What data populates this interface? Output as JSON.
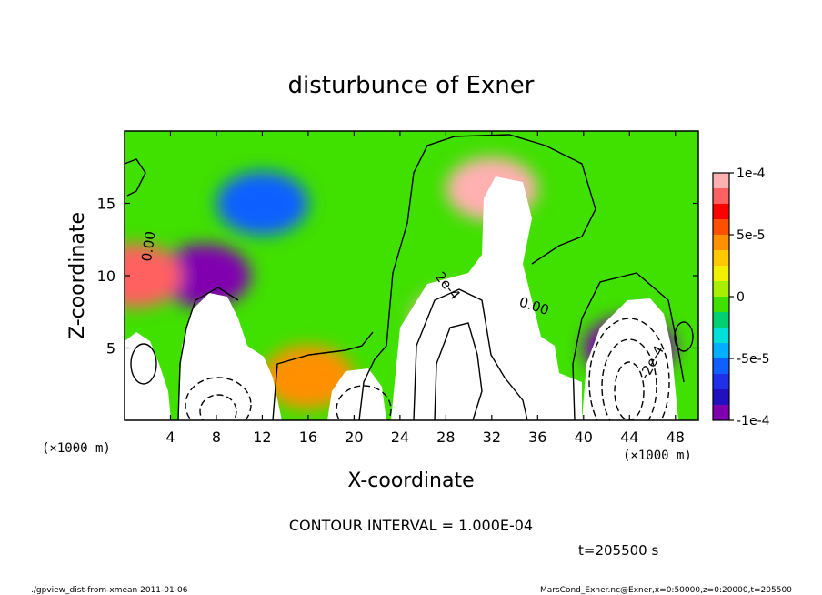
{
  "chart_data": {
    "type": "heatmap",
    "title": "disturbunce of Exner",
    "xlabel": "X-coordinate",
    "ylabel": "Z-coordinate",
    "x_unit": "(×1000 m)",
    "z_unit": "(×1000 m)",
    "xlim": [
      0,
      50
    ],
    "ylim": [
      0,
      20
    ],
    "x_ticks": [
      "4",
      "8",
      "12",
      "16",
      "20",
      "24",
      "28",
      "32",
      "36",
      "40",
      "44",
      "48"
    ],
    "y_ticks": [
      "5",
      "10",
      "15"
    ],
    "colorbar": {
      "range": [
        -0.0001,
        0.0001
      ],
      "labels": [
        "1e-4",
        "5e-5",
        "0",
        "-5e-5",
        "-1e-4"
      ],
      "colors": [
        "#ffb0b0",
        "#ff6060",
        "#ff0000",
        "#ff5000",
        "#ff9000",
        "#ffc800",
        "#f0f000",
        "#a8f000",
        "#40e000",
        "#00d070",
        "#00e0d8",
        "#00b0ff",
        "#1060ff",
        "#2030e8",
        "#2010c0",
        "#8000b0"
      ]
    },
    "contour_labels": [
      "0.00",
      "2e-4",
      "0.00",
      "-2e-4"
    ],
    "contour_interval_text": "CONTOUR INTERVAL = 1.000E-04",
    "time_text": "t=205500 s",
    "footer_left": "./gpview_dist-from-xmean  2011-01-06",
    "footer_right": "MarsCond_Exner.nc@Exner,x=0:50000,z=0:20000,t=205500",
    "features": [
      {
        "name": "upper-cold-dome",
        "x": 12,
        "z": 15,
        "value": -5e-05
      },
      {
        "name": "left-cold-core",
        "x": 7,
        "z": 10,
        "value": -9e-05
      },
      {
        "name": "warm-plume-head",
        "x": 32,
        "z": 16,
        "value": 0.0001
      },
      {
        "name": "warm-plume-stem",
        "x": 29,
        "z": 7,
        "value": 0.0002
      },
      {
        "name": "right-cold-core",
        "x": 44,
        "z": 5,
        "value": -0.0002
      },
      {
        "name": "left-warm-edge",
        "x": 1,
        "z": 10,
        "value": 8e-05
      },
      {
        "name": "mid-warm-patch",
        "x": 16,
        "z": 3,
        "value": 4e-05
      }
    ]
  }
}
